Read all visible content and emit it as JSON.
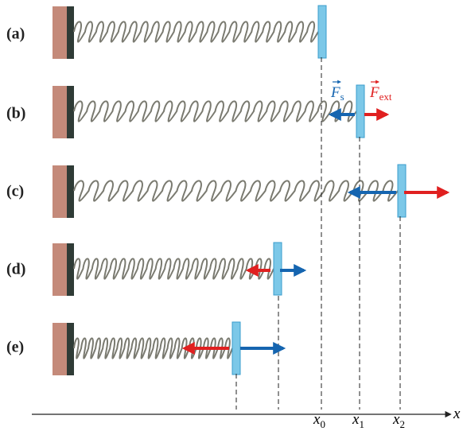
{
  "rows": [
    {
      "label": "(a)"
    },
    {
      "label": "(b)"
    },
    {
      "label": "(c)"
    },
    {
      "label": "(d)"
    },
    {
      "label": "(e)"
    }
  ],
  "forces": {
    "spring": {
      "symbol": "F",
      "subscript": "s"
    },
    "external": {
      "symbol": "F",
      "subscript": "ext"
    }
  },
  "axis": {
    "label": "x",
    "ticks": [
      {
        "symbol": "x",
        "subscript": "0"
      },
      {
        "symbol": "x",
        "subscript": "1"
      },
      {
        "symbol": "x",
        "subscript": "2"
      }
    ]
  }
}
